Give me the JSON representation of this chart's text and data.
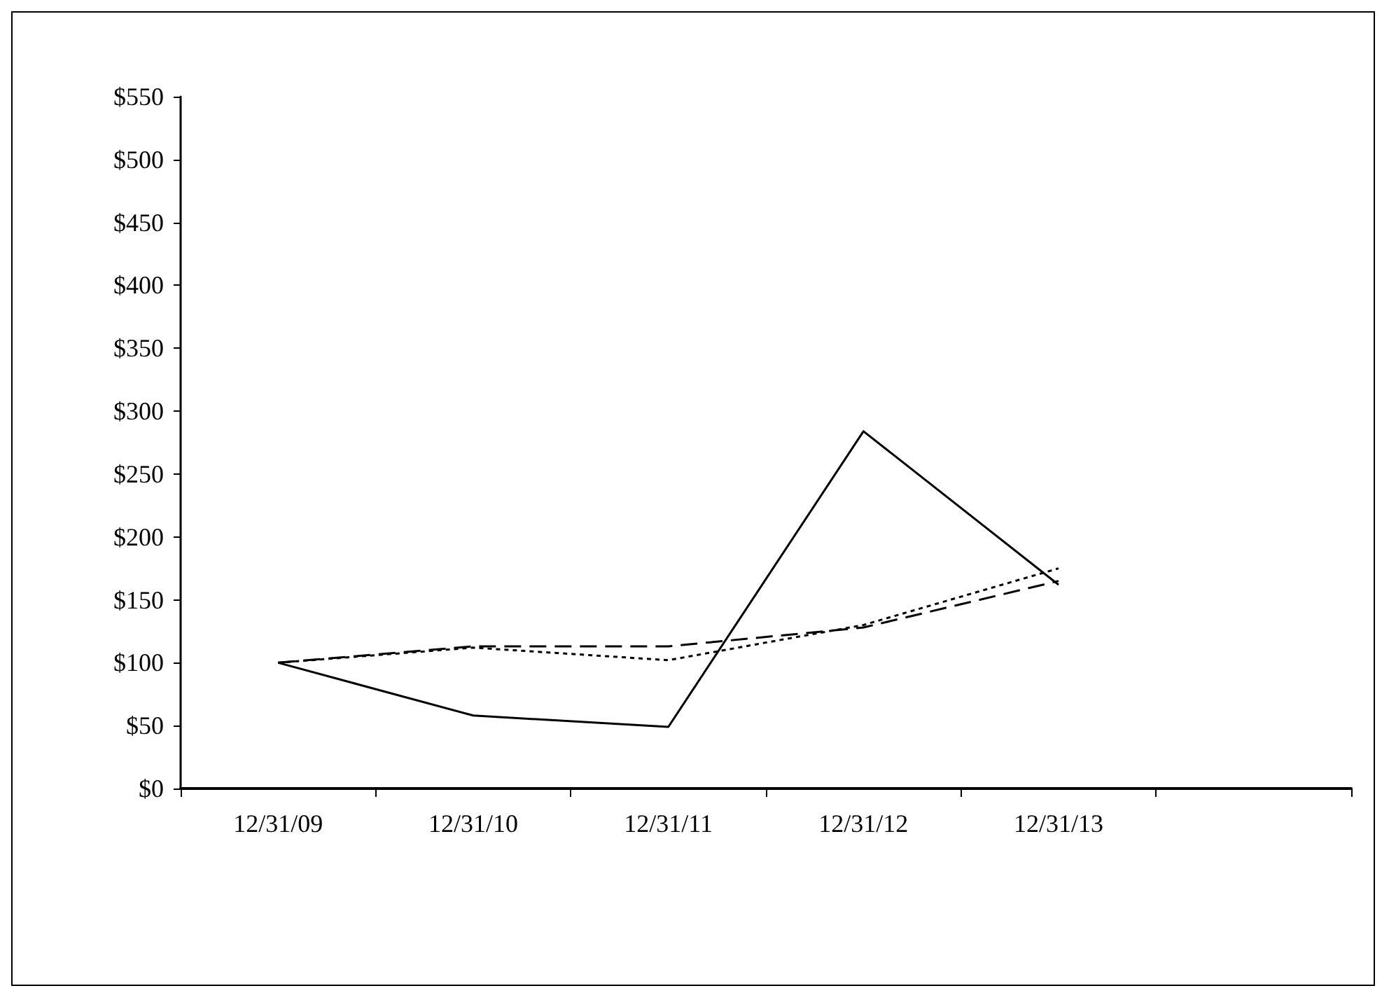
{
  "chart_data": {
    "type": "line",
    "categories": [
      "12/31/09",
      "12/31/10",
      "12/31/11",
      "12/31/12",
      "12/31/13",
      null
    ],
    "series": [
      {
        "color": "#000000",
        "line_style": "solid",
        "values": [
          100,
          58,
          49,
          284,
          162,
          null
        ]
      },
      {
        "color": "#000000",
        "line_style": "dashed",
        "values": [
          100,
          113,
          113,
          128,
          165,
          null
        ]
      },
      {
        "color": "#000000",
        "line_style": "dotted",
        "values": [
          100,
          112,
          102,
          130,
          175,
          null
        ]
      }
    ],
    "ylim": [
      0,
      550
    ],
    "yticks": [
      {
        "value": 0,
        "label": "$0"
      },
      {
        "value": 50,
        "label": "$50"
      },
      {
        "value": 100,
        "label": "$100"
      },
      {
        "value": 150,
        "label": "$150"
      },
      {
        "value": 200,
        "label": "$200"
      },
      {
        "value": 250,
        "label": "$250"
      },
      {
        "value": 300,
        "label": "$300"
      },
      {
        "value": 350,
        "label": "$350"
      },
      {
        "value": 400,
        "label": "$400"
      },
      {
        "value": 450,
        "label": "$450"
      },
      {
        "value": 500,
        "label": "$500"
      },
      {
        "value": 550,
        "label": "$550"
      }
    ],
    "grid": false,
    "marker": "none"
  }
}
